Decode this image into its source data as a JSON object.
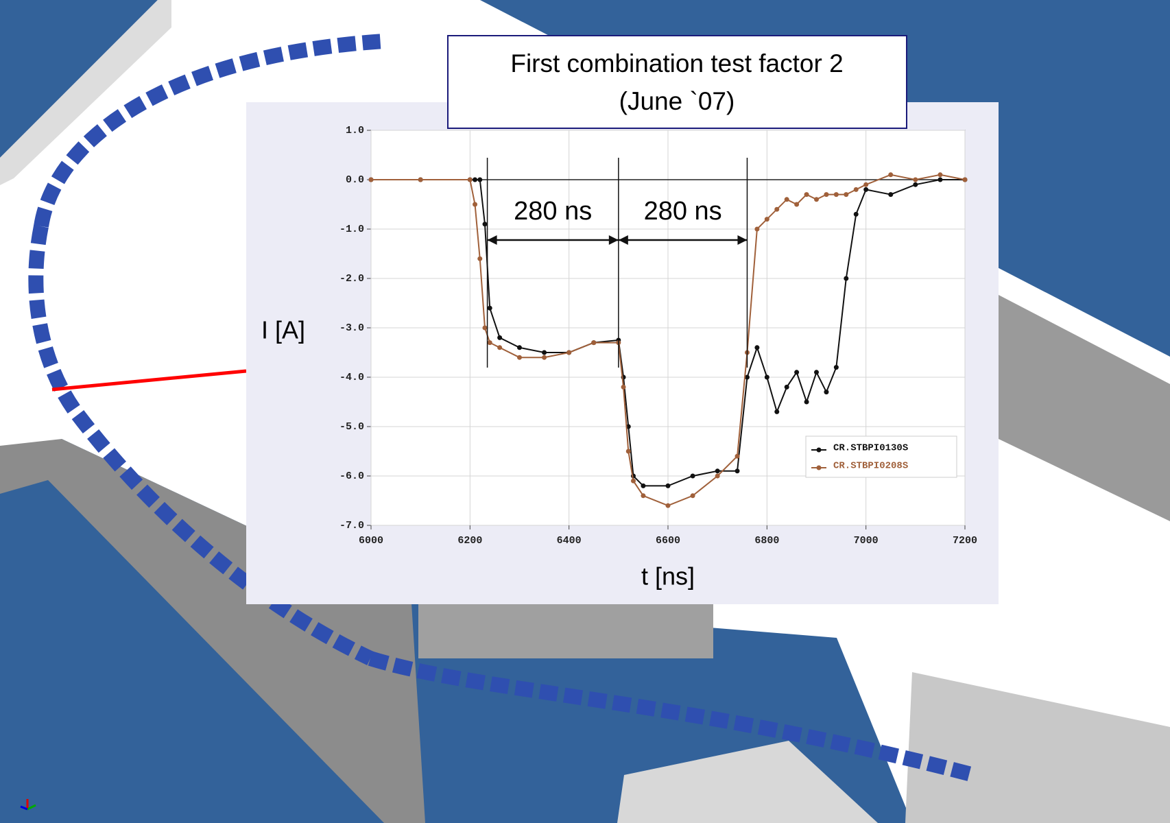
{
  "chart_data": {
    "type": "line",
    "title": "First combination test factor 2",
    "subtitle": "(June `07)",
    "x_label": "t [ns]",
    "y_label": "I [A]",
    "x": [
      6000,
      6100,
      6200,
      6210,
      6220,
      6230,
      6240,
      6260,
      6300,
      6350,
      6400,
      6450,
      6500,
      6510,
      6520,
      6530,
      6550,
      6600,
      6650,
      6700,
      6740,
      6760,
      6780,
      6800,
      6820,
      6840,
      6860,
      6880,
      6900,
      6920,
      6940,
      6960,
      6980,
      7000,
      7050,
      7100,
      7150,
      7200
    ],
    "series": [
      {
        "name": "CR.STBPI0130S",
        "color": "#111111",
        "values": [
          0,
          0,
          0,
          0,
          0,
          -0.9,
          -2.6,
          -3.2,
          -3.4,
          -3.5,
          -3.5,
          -3.3,
          -3.25,
          -4.0,
          -5.0,
          -6.0,
          -6.2,
          -6.2,
          -6.0,
          -5.9,
          -5.9,
          -4.0,
          -3.4,
          -4.0,
          -4.7,
          -4.2,
          -3.9,
          -4.5,
          -3.9,
          -4.3,
          -3.8,
          -2.0,
          -0.7,
          -0.2,
          -0.3,
          -0.1,
          0.0,
          0.0
        ]
      },
      {
        "name": "CR.STBPI0208S",
        "color": "#a0603a",
        "values": [
          0,
          0,
          0,
          -0.5,
          -1.6,
          -3.0,
          -3.3,
          -3.4,
          -3.6,
          -3.6,
          -3.5,
          -3.3,
          -3.3,
          -4.2,
          -5.5,
          -6.1,
          -6.4,
          -6.6,
          -6.4,
          -6.0,
          -5.6,
          -3.5,
          -1.0,
          -0.8,
          -0.6,
          -0.4,
          -0.5,
          -0.3,
          -0.4,
          -0.3,
          -0.3,
          -0.3,
          -0.2,
          -0.1,
          0.1,
          0.0,
          0.1,
          0.0
        ]
      }
    ],
    "xlim": [
      6000,
      7200
    ],
    "xticks": [
      6000,
      6200,
      6400,
      6600,
      6800,
      7000,
      7200
    ],
    "ylim": [
      -7,
      1
    ],
    "yticks": [
      {
        "value": 1,
        "label": "1.0"
      },
      {
        "value": 0,
        "label": "0.0"
      },
      {
        "value": -1,
        "label": "-1.0"
      },
      {
        "value": -2,
        "label": "-2.0"
      },
      {
        "value": -3,
        "label": "-3.0"
      },
      {
        "value": -4,
        "label": "-4.0"
      },
      {
        "value": -5,
        "label": "-5.0"
      },
      {
        "value": -6,
        "label": "-6.0"
      },
      {
        "value": -7,
        "label": "-7.0"
      }
    ],
    "grid": true,
    "legend": "lower right",
    "markers": [
      6235,
      6500,
      6760
    ],
    "annotations": [
      {
        "text": "280 ns",
        "x1": 6235,
        "x2": 6500
      },
      {
        "text": "280 ns",
        "x1": 6500,
        "x2": 6760
      }
    ]
  }
}
